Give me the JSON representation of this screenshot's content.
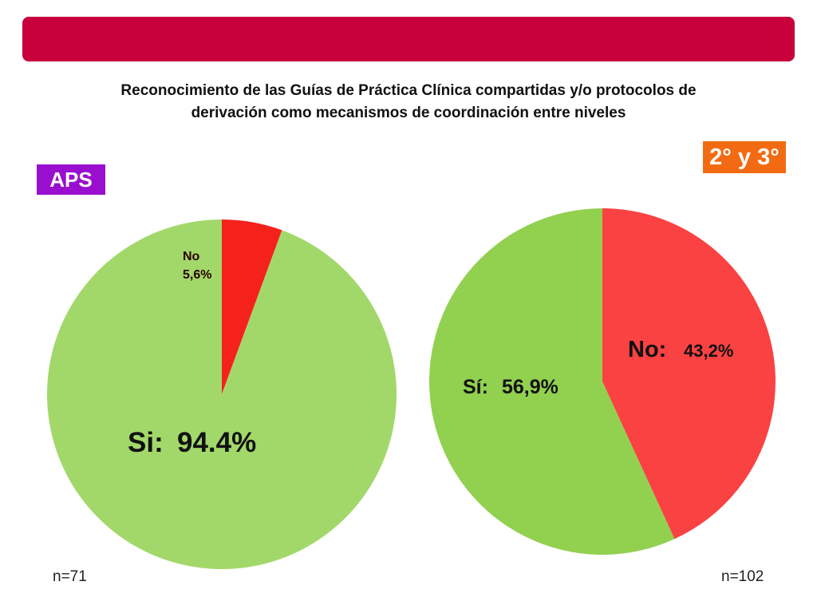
{
  "header": {
    "title_line1": "Reconocimiento de las Guías de Práctica Clínica compartidas y/o protocolos de",
    "title_line2": "derivación como mecanismos de coordinación entre niveles",
    "bar_color": "#C8003C"
  },
  "chart_data": [
    {
      "type": "pie",
      "group_label": "APS",
      "group_color": "#9A0FCF",
      "n_label": "n=71",
      "slices": [
        {
          "label": "Si:",
          "value": 94.4,
          "text": "94.4%",
          "color": "#A2D86A"
        },
        {
          "label": "No",
          "value": 5.6,
          "text": "5,6%",
          "color": "#F5221C"
        }
      ]
    },
    {
      "type": "pie",
      "group_label": "2° y 3°",
      "group_color": "#F26B12",
      "n_label": "n=102",
      "slices": [
        {
          "label": "Sí:",
          "value": 56.9,
          "text": "56,9%",
          "color": "#92D050"
        },
        {
          "label": "No:",
          "value": 43.2,
          "text": "43,2%",
          "color": "#FA4242"
        }
      ]
    }
  ]
}
